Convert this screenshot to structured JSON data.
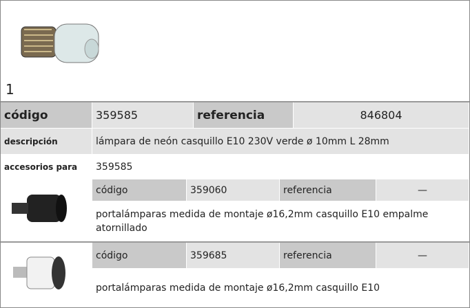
{
  "product": {
    "image_label": "1",
    "codigo_label": "código",
    "codigo": "359585",
    "referencia_label": "referencia",
    "referencia": "846804",
    "descripcion_label": "descripción",
    "descripcion": "lámpara de neón  casquillo E10 230V verde ø 10mm L 28mm",
    "accesorios_label": "accesorios para",
    "accesorios": "359585"
  },
  "accessories": [
    {
      "codigo_label": "código",
      "codigo": "359060",
      "referencia_label": "referencia",
      "referencia": "—",
      "descripcion": "portalámparas  medida de montaje ø16,2mm casquillo E10 empalme atornillado"
    },
    {
      "codigo_label": "código",
      "codigo": "359685",
      "referencia_label": "referencia",
      "referencia": "—",
      "descripcion": "portalámparas  medida de montaje ø16,2mm casquillo E10"
    }
  ]
}
